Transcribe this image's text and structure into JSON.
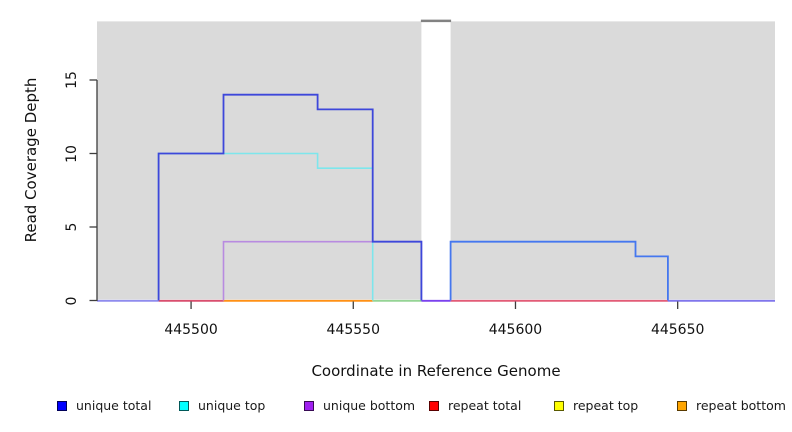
{
  "chart_data": {
    "type": "step-line",
    "title": "",
    "xlabel": "Coordinate in Reference Genome",
    "ylabel": "Read Coverage Depth",
    "x_ticks": [
      445500,
      445550,
      445600,
      445650
    ],
    "y_ticks": [
      0,
      5,
      10,
      15
    ],
    "x_range": [
      445471,
      445680
    ],
    "y_range": [
      0,
      19.05
    ],
    "grid": "off",
    "legend_position": "bottom",
    "plot_bg_color": "#DADADA",
    "axis_color": "#3d3d3d",
    "background_regions": [
      {
        "name": "reference-segment-left",
        "x0": 445471,
        "x1": 445571,
        "color": "#DADADA"
      },
      {
        "name": "reference-segment-right",
        "x0": 445580,
        "x1": 445680,
        "color": "#DADADA"
      }
    ],
    "coverage_gap": {
      "x0": 445571,
      "x1": 445580,
      "cap_color": "#828282",
      "cap_y": 19.05
    },
    "series": [
      {
        "name": "unique bottom",
        "color": "#B88BE0",
        "width": 1.6,
        "vertices": [
          [
            445510,
            0
          ],
          [
            445510,
            4
          ],
          [
            445571,
            4
          ],
          [
            445571,
            0
          ]
        ]
      },
      {
        "name": "unique top",
        "color": "#7DE6EC",
        "width": 1.6,
        "vertices": [
          [
            445490,
            0
          ],
          [
            445490,
            10
          ],
          [
            445539,
            10
          ],
          [
            445539,
            9
          ],
          [
            445556,
            9
          ],
          [
            445556,
            0
          ]
        ]
      },
      {
        "name": "unique total (left block)",
        "color": "#3D47DA",
        "width": 1.8,
        "vertices": [
          [
            445490,
            0
          ],
          [
            445490,
            10
          ],
          [
            445510,
            10
          ],
          [
            445510,
            14
          ],
          [
            445539,
            14
          ],
          [
            445539,
            13
          ],
          [
            445556,
            13
          ],
          [
            445556,
            4
          ],
          [
            445571,
            4
          ],
          [
            445571,
            0
          ]
        ]
      },
      {
        "name": "unique total (right block)",
        "color": "#4577EF",
        "width": 1.8,
        "vertices": [
          [
            445580,
            0
          ],
          [
            445580,
            4
          ],
          [
            445637,
            4
          ],
          [
            445637,
            3
          ],
          [
            445647,
            3
          ],
          [
            445647,
            0
          ]
        ]
      }
    ],
    "baseline_segments": [
      {
        "x0": 445471,
        "x1": 445490,
        "color": "#8F8CEE"
      },
      {
        "x0": 445490,
        "x1": 445510,
        "color": "#D94F6E"
      },
      {
        "x0": 445510,
        "x1": 445556,
        "color": "#FF9015"
      },
      {
        "x0": 445556,
        "x1": 445571,
        "color": "#95D495"
      },
      {
        "x0": 445571,
        "x1": 445580,
        "color": "#7C42EE"
      },
      {
        "x0": 445580,
        "x1": 445647,
        "color": "#E25C77"
      },
      {
        "x0": 445647,
        "x1": 445680,
        "color": "#8076EC"
      }
    ],
    "legend": [
      {
        "label": "unique total",
        "color": "#0000FF"
      },
      {
        "label": "unique top",
        "color": "#00FFFF"
      },
      {
        "label": "unique bottom",
        "color": "#A020F0"
      },
      {
        "label": "repeat total",
        "color": "#FF0000"
      },
      {
        "label": "repeat top",
        "color": "#FFFF00"
      },
      {
        "label": "repeat bottom",
        "color": "#FFA500"
      }
    ]
  }
}
